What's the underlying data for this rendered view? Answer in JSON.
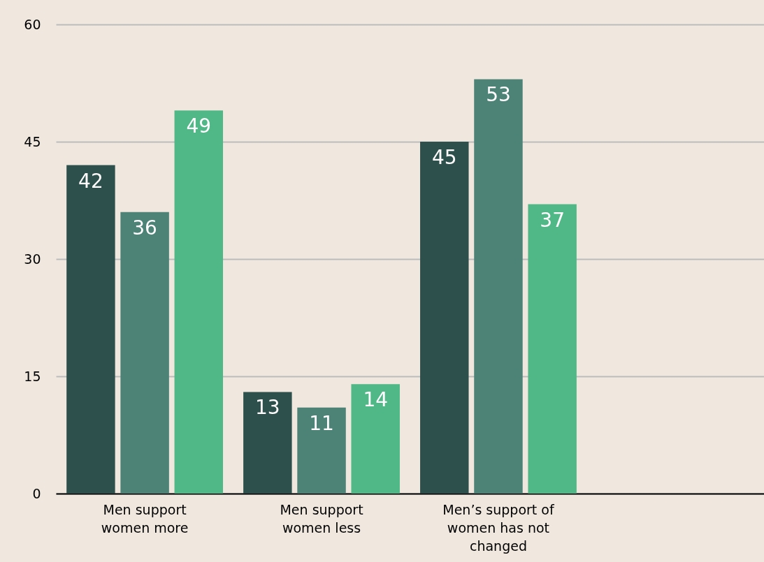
{
  "chart_data": {
    "type": "bar",
    "categories": [
      "Men support women more",
      "Men support women less",
      "Men’s support of women has not changed",
      null
    ],
    "series": [
      {
        "color": "#2e504d",
        "values": [
          42,
          13,
          45,
          null
        ]
      },
      {
        "color": "#4d8277",
        "values": [
          36,
          11,
          53,
          null
        ]
      },
      {
        "color": "#4fb886",
        "values": [
          49,
          14,
          37,
          null
        ]
      }
    ],
    "ylim": [
      0,
      60
    ],
    "yticks": [
      0,
      15,
      30,
      45,
      60
    ],
    "grid": "y",
    "data_labels": true
  }
}
